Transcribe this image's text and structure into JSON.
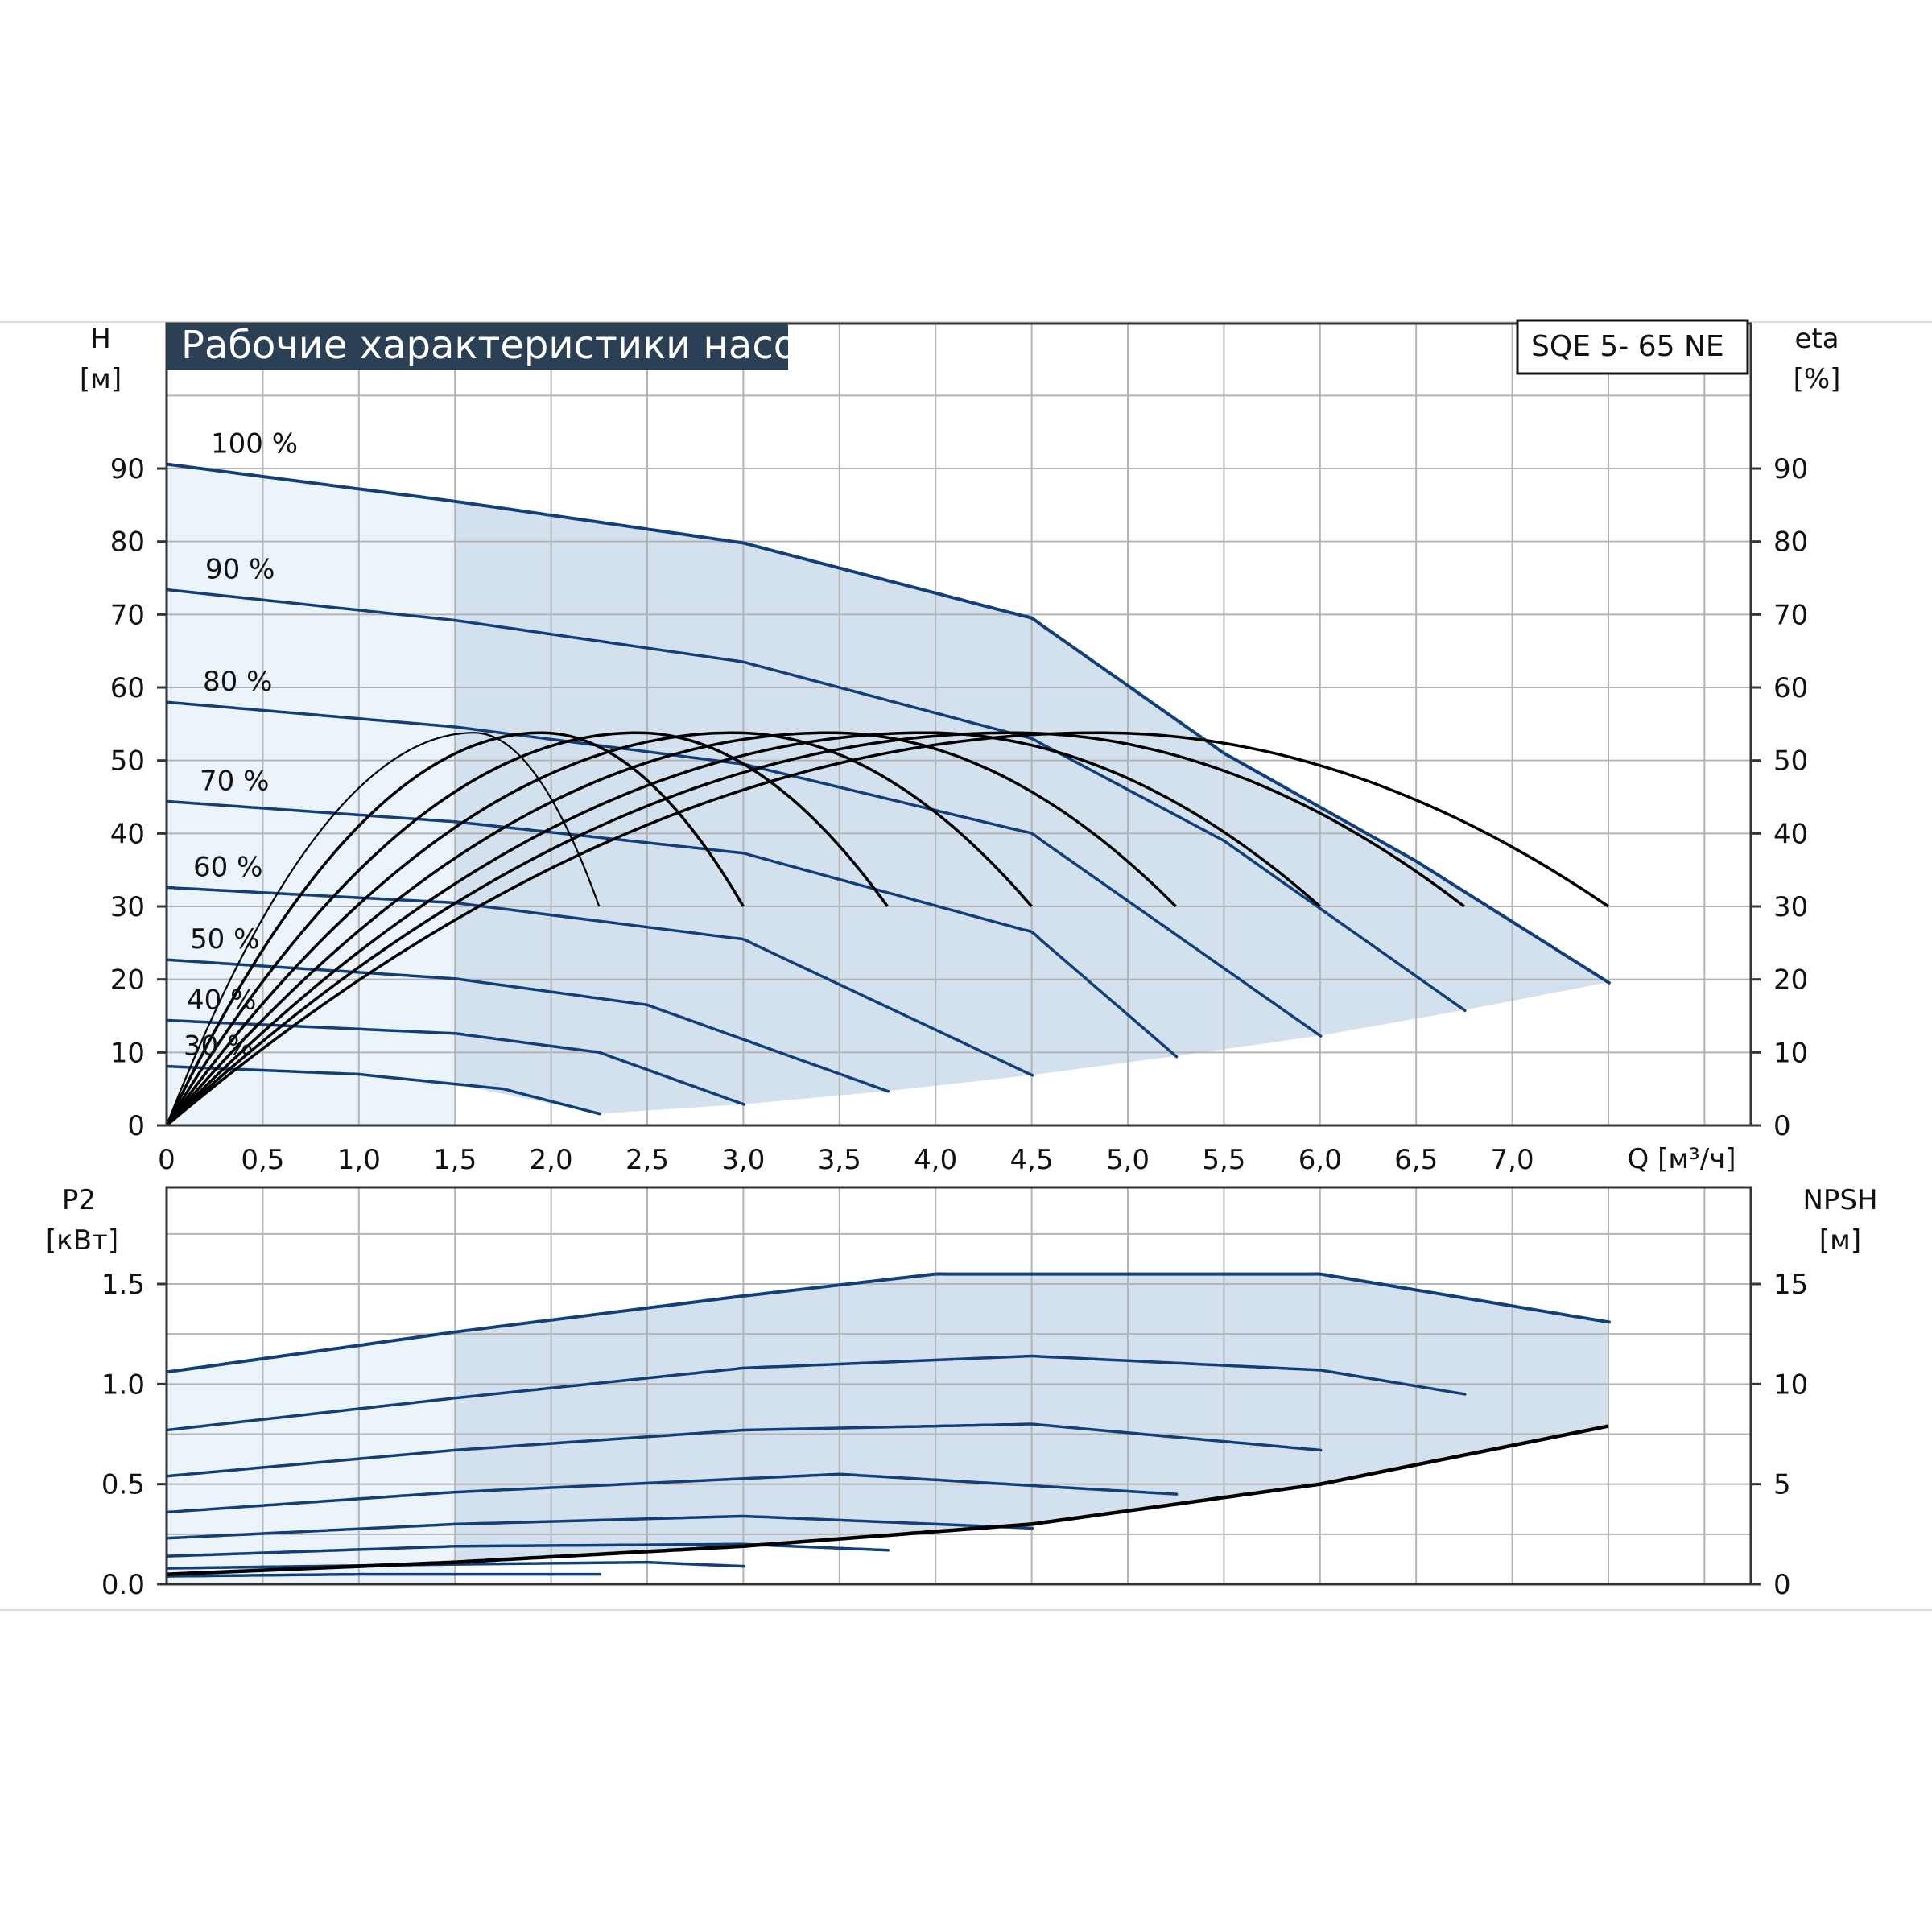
{
  "title": "Рабочие характеристики насоса",
  "model": "SQE 5- 65 NE",
  "colors": {
    "curve": "#123f7a",
    "eff": "#000000",
    "fill_dark": "#d3e1ee",
    "fill_light": "#ecf4fb",
    "grid": "#b4b4b4",
    "title_bg": "#2b3f55"
  },
  "chart_data": [
    {
      "type": "line",
      "title": "Рабочие характеристики насоса",
      "xlabel": "Q [м³/ч]",
      "ylabel": "H [м]",
      "y2label": "eta [%]",
      "y_axis_label": {
        "symbol": "H",
        "unit": "[м]"
      },
      "y2_axis_label": {
        "symbol": "eta",
        "unit": "[%]"
      },
      "xlim": [
        0,
        8.2
      ],
      "ylim": [
        0,
        100
      ],
      "x_ticks": [
        "0",
        "0,5",
        "1,0",
        "1,5",
        "2,0",
        "2,5",
        "3,0",
        "3,5",
        "4,0",
        "4,5",
        "5,0",
        "5,5",
        "6,0",
        "6,5",
        "7,0"
      ],
      "y_ticks": [
        "0",
        "10",
        "20",
        "30",
        "40",
        "50",
        "60",
        "70",
        "80",
        "90"
      ],
      "y2_ticks": [
        "0",
        "10",
        "20",
        "30",
        "40",
        "50",
        "60",
        "70",
        "80",
        "90"
      ],
      "grid": true,
      "series": [
        {
          "name": "100 %",
          "x": [
            0,
            1.5,
            3.0,
            4.5,
            5.5,
            6.5,
            7.5
          ],
          "y": [
            90.6,
            85.5,
            79.8,
            69.5,
            51.0,
            36.2,
            19.6
          ]
        },
        {
          "name": "90 %",
          "x": [
            0,
            1.5,
            3.0,
            4.5,
            5.5,
            6.75
          ],
          "y": [
            73.4,
            69.2,
            63.5,
            53.0,
            39.0,
            15.8
          ]
        },
        {
          "name": "80 %",
          "x": [
            0,
            1.5,
            3.0,
            4.5,
            6.0
          ],
          "y": [
            58.0,
            54.6,
            49.5,
            40.0,
            12.3
          ]
        },
        {
          "name": "70 %",
          "x": [
            0,
            1.5,
            3.0,
            4.5,
            5.25
          ],
          "y": [
            44.4,
            41.6,
            37.3,
            26.5,
            9.5
          ]
        },
        {
          "name": "60 %",
          "x": [
            0,
            1.5,
            3.0,
            4.5
          ],
          "y": [
            32.6,
            30.5,
            25.5,
            6.9
          ]
        },
        {
          "name": "50 %",
          "x": [
            0,
            1.5,
            2.5,
            3.75
          ],
          "y": [
            22.7,
            20.1,
            16.5,
            4.7
          ]
        },
        {
          "name": "40 %",
          "x": [
            0,
            1.5,
            2.25,
            3.0
          ],
          "y": [
            14.4,
            12.6,
            10.0,
            2.9
          ]
        },
        {
          "name": "30 %",
          "x": [
            0,
            1.0,
            1.75,
            2.25
          ],
          "y": [
            8.1,
            7.0,
            5.0,
            1.6
          ]
        }
      ],
      "efficiency_curves": [
        {
          "x_max": 2.25,
          "peak_x": 1.6,
          "peak": 53.8,
          "end": 30.0
        },
        {
          "x_max": 3.0,
          "peak_x": 1.95,
          "peak": 53.8,
          "end": 30.0
        },
        {
          "x_max": 3.75,
          "peak_x": 2.45,
          "peak": 53.8,
          "end": 30.0
        },
        {
          "x_max": 4.5,
          "peak_x": 2.95,
          "peak": 53.8,
          "end": 30.0
        },
        {
          "x_max": 5.25,
          "peak_x": 3.45,
          "peak": 53.8,
          "end": 30.0
        },
        {
          "x_max": 6.0,
          "peak_x": 3.95,
          "peak": 53.8,
          "end": 30.0
        },
        {
          "x_max": 6.75,
          "peak_x": 4.4,
          "peak": 53.8,
          "end": 30.0
        },
        {
          "x_max": 7.5,
          "peak_x": 4.85,
          "peak": 53.8,
          "end": 30.0
        }
      ],
      "annotations": [
        "100 %",
        "90 %",
        "80 %",
        "70 %",
        "60 %",
        "50 %",
        "40 %",
        "30 %"
      ]
    },
    {
      "type": "line",
      "xlabel": "Q [м³/ч]",
      "ylabel": "P2 [кВт]",
      "y2label": "NPSH [м]",
      "y_axis_label": {
        "symbol": "P2",
        "unit": "[кВт]"
      },
      "y2_axis_label": {
        "symbol": "NPSH",
        "unit": "[м]"
      },
      "xlim": [
        0,
        8.2
      ],
      "ylim": [
        0,
        2.0
      ],
      "y_ticks": [
        "0.0",
        "0.5",
        "1.0",
        "1.5"
      ],
      "y2_ticks": [
        "0",
        "5",
        "10",
        "15"
      ],
      "grid": true,
      "series": [
        {
          "name": "100 %",
          "x": [
            0,
            1.5,
            3.0,
            4.0,
            6.0,
            7.5
          ],
          "y": [
            1.06,
            1.26,
            1.44,
            1.55,
            1.55,
            1.31
          ]
        },
        {
          "name": "90 %",
          "x": [
            0,
            1.5,
            3.0,
            4.5,
            6.0,
            6.75
          ],
          "y": [
            0.77,
            0.93,
            1.08,
            1.14,
            1.07,
            0.95
          ]
        },
        {
          "name": "80 %",
          "x": [
            0,
            1.5,
            3.0,
            4.5,
            6.0
          ],
          "y": [
            0.54,
            0.67,
            0.77,
            0.8,
            0.67
          ]
        },
        {
          "name": "70 %",
          "x": [
            0,
            1.5,
            3.5,
            5.25
          ],
          "y": [
            0.36,
            0.46,
            0.55,
            0.45
          ]
        },
        {
          "name": "60 %",
          "x": [
            0,
            1.5,
            3.0,
            4.5
          ],
          "y": [
            0.23,
            0.3,
            0.34,
            0.28
          ]
        },
        {
          "name": "50 %",
          "x": [
            0,
            1.5,
            3.0,
            3.75
          ],
          "y": [
            0.14,
            0.19,
            0.2,
            0.17
          ]
        },
        {
          "name": "40 %",
          "x": [
            0,
            1.5,
            2.5,
            3.0
          ],
          "y": [
            0.08,
            0.1,
            0.11,
            0.09
          ]
        },
        {
          "name": "30 %",
          "x": [
            0,
            1.0,
            2.25
          ],
          "y": [
            0.04,
            0.05,
            0.05
          ]
        }
      ],
      "npsh": {
        "x": [
          0,
          1.5,
          3.0,
          4.5,
          6.0,
          7.5
        ],
        "y": [
          0.5,
          1.1,
          1.9,
          3.0,
          5.0,
          7.9
        ]
      }
    }
  ]
}
